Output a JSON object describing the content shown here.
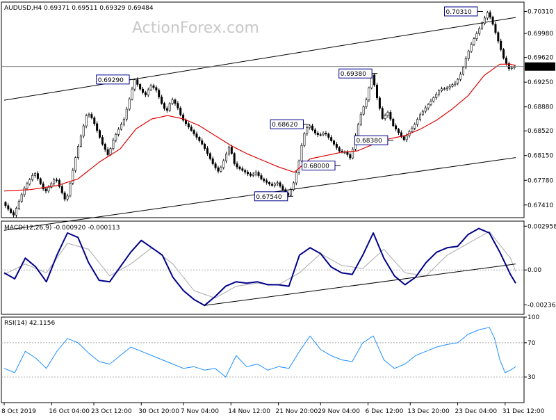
{
  "header": {
    "main": "AUDUSD,H4  0.69371 0.69511 0.69329 0.69484",
    "macd": "MACD(12,26,9) -0.000920 -0.000113",
    "rsi": "RSI(14) 42.1156"
  },
  "watermark": "ActionForex.com",
  "colors": {
    "candle": "#000000",
    "ma": "#e00000",
    "macd": "#00008b",
    "signal": "#a9a9a9",
    "rsi": "#1e90ff",
    "trend": "#000000",
    "label_border": "#00008b"
  },
  "chart_data": [
    {
      "type": "candlestick",
      "symbol": "AUDUSD",
      "timeframe": "H4",
      "ohlc_last": [
        0.69371,
        0.69511,
        0.69329,
        0.69484
      ],
      "current_price": 0.69484,
      "current_price_label": "0.69484",
      "ylim": [
        0.6722,
        0.7045
      ],
      "y_ticks": [
        0.7031,
        0.6998,
        0.6962,
        0.6925,
        0.6888,
        0.6852,
        0.6815,
        0.6778,
        0.6741
      ],
      "y_tick_labels": [
        "0.70310",
        "0.69980",
        "0.69620",
        "0.69250",
        "0.68880",
        "0.68520",
        "0.68150",
        "0.67780",
        "0.67410"
      ],
      "price_path": [
        [
          0,
          0.6745
        ],
        [
          2,
          0.6725
        ],
        [
          4,
          0.6765
        ],
        [
          6,
          0.679
        ],
        [
          8,
          0.676
        ],
        [
          10,
          0.6782
        ],
        [
          12,
          0.6745
        ],
        [
          14,
          0.682
        ],
        [
          15,
          0.685
        ],
        [
          16,
          0.688
        ],
        [
          17,
          0.687
        ],
        [
          18,
          0.685
        ],
        [
          19,
          0.683
        ],
        [
          20,
          0.6815
        ],
        [
          21,
          0.684
        ],
        [
          22,
          0.6855
        ],
        [
          23,
          0.687
        ],
        [
          24,
          0.69
        ],
        [
          25,
          0.6929
        ],
        [
          26,
          0.6915
        ],
        [
          27,
          0.6905
        ],
        [
          28,
          0.692
        ],
        [
          29,
          0.6915
        ],
        [
          30,
          0.6895
        ],
        [
          31,
          0.688
        ],
        [
          32,
          0.69
        ],
        [
          33,
          0.689
        ],
        [
          34,
          0.687
        ],
        [
          35,
          0.686
        ],
        [
          36,
          0.685
        ],
        [
          37,
          0.684
        ],
        [
          38,
          0.683
        ],
        [
          39,
          0.6815
        ],
        [
          40,
          0.68
        ],
        [
          41,
          0.679
        ],
        [
          42,
          0.681
        ],
        [
          43,
          0.683
        ],
        [
          44,
          0.68
        ],
        [
          45,
          0.6795
        ],
        [
          46,
          0.679
        ],
        [
          47,
          0.6785
        ],
        [
          48,
          0.679
        ],
        [
          49,
          0.678
        ],
        [
          50,
          0.6775
        ],
        [
          51,
          0.677
        ],
        [
          52,
          0.6775
        ],
        [
          53,
          0.6765
        ],
        [
          54,
          0.6754
        ],
        [
          55,
          0.677
        ],
        [
          56,
          0.68
        ],
        [
          57,
          0.6845
        ],
        [
          58,
          0.6862
        ],
        [
          59,
          0.685
        ],
        [
          60,
          0.6845
        ],
        [
          61,
          0.685
        ],
        [
          62,
          0.684
        ],
        [
          63,
          0.683
        ],
        [
          64,
          0.682
        ],
        [
          65,
          0.682
        ],
        [
          66,
          0.681
        ],
        [
          67,
          0.685
        ],
        [
          68,
          0.688
        ],
        [
          69,
          0.69
        ],
        [
          70,
          0.6938
        ],
        [
          71,
          0.69
        ],
        [
          72,
          0.687
        ],
        [
          73,
          0.688
        ],
        [
          74,
          0.686
        ],
        [
          75,
          0.685
        ],
        [
          76,
          0.6838
        ],
        [
          77,
          0.685
        ],
        [
          78,
          0.686
        ],
        [
          79,
          0.6875
        ],
        [
          80,
          0.6885
        ],
        [
          81,
          0.6895
        ],
        [
          82,
          0.6905
        ],
        [
          83,
          0.6915
        ],
        [
          84,
          0.6915
        ],
        [
          85,
          0.692
        ],
        [
          86,
          0.6925
        ],
        [
          87,
          0.694
        ],
        [
          88,
          0.6965
        ],
        [
          89,
          0.6985
        ],
        [
          90,
          0.7
        ],
        [
          91,
          0.7015
        ],
        [
          92,
          0.7031
        ],
        [
          93,
          0.701
        ],
        [
          94,
          0.6985
        ],
        [
          95,
          0.696
        ],
        [
          96,
          0.6945
        ],
        [
          97,
          0.6948
        ]
      ],
      "ma_path": [
        [
          0,
          0.6762
        ],
        [
          5,
          0.6764
        ],
        [
          10,
          0.677
        ],
        [
          14,
          0.678
        ],
        [
          18,
          0.6805
        ],
        [
          22,
          0.6825
        ],
        [
          25,
          0.6855
        ],
        [
          28,
          0.687
        ],
        [
          31,
          0.6875
        ],
        [
          34,
          0.687
        ],
        [
          37,
          0.686
        ],
        [
          40,
          0.6845
        ],
        [
          43,
          0.683
        ],
        [
          46,
          0.6818
        ],
        [
          49,
          0.6808
        ],
        [
          52,
          0.6798
        ],
        [
          55,
          0.679
        ],
        [
          58,
          0.681
        ],
        [
          61,
          0.6815
        ],
        [
          64,
          0.682
        ],
        [
          67,
          0.6822
        ],
        [
          70,
          0.6832
        ],
        [
          73,
          0.684
        ],
        [
          76,
          0.6845
        ],
        [
          79,
          0.6855
        ],
        [
          82,
          0.6868
        ],
        [
          85,
          0.6885
        ],
        [
          88,
          0.6905
        ],
        [
          91,
          0.6935
        ],
        [
          94,
          0.6952
        ],
        [
          96,
          0.6952
        ],
        [
          97,
          0.695
        ]
      ],
      "channel_upper": [
        [
          0,
          0.6898
        ],
        [
          97,
          0.7022
        ]
      ],
      "channel_lower": [
        [
          0,
          0.6703
        ],
        [
          97,
          0.6812
        ]
      ],
      "annotations": [
        {
          "x": 24,
          "y": 0.6929,
          "label": "0.69290"
        },
        {
          "x": 54,
          "y": 0.6754,
          "label": "0.67540"
        },
        {
          "x": 57,
          "y": 0.6862,
          "label": "0.68620"
        },
        {
          "x": 63,
          "y": 0.68,
          "label": "0.68000"
        },
        {
          "x": 70,
          "y": 0.6938,
          "label": "0.69380"
        },
        {
          "x": 73,
          "y": 0.6838,
          "label": "0.68380"
        },
        {
          "x": 90,
          "y": 0.7031,
          "label": "0.70310"
        }
      ],
      "x_labels": [
        {
          "x": 0,
          "label": "8 Oct 2019"
        },
        {
          "x": 9,
          "label": "16 Oct 04:00"
        },
        {
          "x": 17,
          "label": "23 Oct 12:00"
        },
        {
          "x": 26,
          "label": "30 Oct 20:00"
        },
        {
          "x": 34,
          "label": "7 Nov 04:00"
        },
        {
          "x": 43,
          "label": "14 Nov 12:00"
        },
        {
          "x": 52,
          "label": "21 Nov 20:00"
        },
        {
          "x": 60,
          "label": "29 Nov 04:00"
        },
        {
          "x": 69,
          "label": "6 Dec 12:00"
        },
        {
          "x": 77,
          "label": "13 Dec 20:00"
        },
        {
          "x": 86,
          "label": "23 Dec 04:00"
        },
        {
          "x": 95,
          "label": "31 Dec 12:00"
        }
      ]
    },
    {
      "type": "line",
      "name": "MACD(12,26,9)",
      "ylim": [
        -0.003,
        0.0033
      ],
      "y_ticks": [
        0.002958,
        0.0,
        -0.002364
      ],
      "y_tick_labels": [
        "0.002958",
        "0.00",
        "-0.002364"
      ],
      "zero_level": 0.0,
      "macd_path": [
        [
          0,
          -0.0002
        ],
        [
          2,
          -0.0006
        ],
        [
          4,
          0.0008
        ],
        [
          6,
          0.0002
        ],
        [
          8,
          -0.0008
        ],
        [
          10,
          0.001
        ],
        [
          12,
          0.0025
        ],
        [
          14,
          0.0022
        ],
        [
          16,
          0.0005
        ],
        [
          18,
          -0.0007
        ],
        [
          20,
          -0.0008
        ],
        [
          22,
          0.0002
        ],
        [
          24,
          0.0012
        ],
        [
          26,
          0.002
        ],
        [
          28,
          0.0015
        ],
        [
          30,
          0.001
        ],
        [
          32,
          -0.0005
        ],
        [
          34,
          -0.0014
        ],
        [
          36,
          -0.002
        ],
        [
          38,
          -0.0024
        ],
        [
          40,
          -0.0018
        ],
        [
          42,
          -0.0011
        ],
        [
          44,
          -0.0008
        ],
        [
          46,
          -0.0009
        ],
        [
          48,
          -0.0008
        ],
        [
          50,
          -0.001
        ],
        [
          52,
          -0.001
        ],
        [
          54,
          -0.0011
        ],
        [
          56,
          0.001
        ],
        [
          58,
          0.0015
        ],
        [
          60,
          0.0011
        ],
        [
          62,
          0.0002
        ],
        [
          64,
          -0.0002
        ],
        [
          66,
          -0.0003
        ],
        [
          68,
          0.001
        ],
        [
          70,
          0.0025
        ],
        [
          72,
          0.0008
        ],
        [
          74,
          -0.0004
        ],
        [
          76,
          -0.001
        ],
        [
          78,
          -0.0005
        ],
        [
          80,
          0.0005
        ],
        [
          82,
          0.0012
        ],
        [
          84,
          0.0015
        ],
        [
          86,
          0.0016
        ],
        [
          88,
          0.0024
        ],
        [
          90,
          0.0028
        ],
        [
          92,
          0.0025
        ],
        [
          94,
          0.0012
        ],
        [
          96,
          -0.0003
        ],
        [
          97,
          -0.0009
        ]
      ],
      "signal_path": [
        [
          0,
          -0.0003
        ],
        [
          4,
          0.0004
        ],
        [
          8,
          -0.0002
        ],
        [
          12,
          0.0018
        ],
        [
          16,
          0.0014
        ],
        [
          20,
          -0.0004
        ],
        [
          24,
          0.0004
        ],
        [
          28,
          0.0015
        ],
        [
          32,
          0.0004
        ],
        [
          36,
          -0.0014
        ],
        [
          40,
          -0.0019
        ],
        [
          44,
          -0.0011
        ],
        [
          48,
          -0.0009
        ],
        [
          52,
          -0.001
        ],
        [
          56,
          -0.0002
        ],
        [
          60,
          0.0011
        ],
        [
          64,
          0.0003
        ],
        [
          68,
          0.0001
        ],
        [
          72,
          0.0014
        ],
        [
          76,
          -0.0002
        ],
        [
          80,
          -0.0004
        ],
        [
          84,
          0.001
        ],
        [
          88,
          0.0018
        ],
        [
          92,
          0.0026
        ],
        [
          96,
          0.0008
        ],
        [
          97,
          -0.0001
        ]
      ],
      "trendline": [
        [
          38,
          -0.0024
        ],
        [
          97,
          0.0004
        ]
      ]
    },
    {
      "type": "line",
      "name": "RSI(14)",
      "ylim": [
        0,
        100
      ],
      "y_ticks": [
        100,
        70,
        30
      ],
      "y_tick_labels": [
        "100",
        "70",
        "30"
      ],
      "levels": [
        70,
        30
      ],
      "rsi_path": [
        [
          0,
          40
        ],
        [
          2,
          35
        ],
        [
          4,
          60
        ],
        [
          6,
          52
        ],
        [
          8,
          40
        ],
        [
          10,
          60
        ],
        [
          12,
          75
        ],
        [
          14,
          70
        ],
        [
          16,
          58
        ],
        [
          18,
          48
        ],
        [
          20,
          45
        ],
        [
          22,
          55
        ],
        [
          24,
          65
        ],
        [
          26,
          60
        ],
        [
          28,
          55
        ],
        [
          30,
          50
        ],
        [
          32,
          45
        ],
        [
          34,
          40
        ],
        [
          36,
          42
        ],
        [
          38,
          38
        ],
        [
          40,
          40
        ],
        [
          42,
          30
        ],
        [
          44,
          55
        ],
        [
          46,
          42
        ],
        [
          48,
          45
        ],
        [
          50,
          38
        ],
        [
          52,
          42
        ],
        [
          54,
          40
        ],
        [
          56,
          60
        ],
        [
          58,
          78
        ],
        [
          60,
          62
        ],
        [
          62,
          55
        ],
        [
          64,
          50
        ],
        [
          66,
          48
        ],
        [
          68,
          70
        ],
        [
          70,
          78
        ],
        [
          72,
          50
        ],
        [
          74,
          40
        ],
        [
          76,
          45
        ],
        [
          78,
          55
        ],
        [
          80,
          60
        ],
        [
          82,
          65
        ],
        [
          84,
          68
        ],
        [
          86,
          70
        ],
        [
          88,
          80
        ],
        [
          90,
          85
        ],
        [
          92,
          88
        ],
        [
          93,
          75
        ],
        [
          94,
          50
        ],
        [
          95,
          35
        ],
        [
          96,
          38
        ],
        [
          97,
          42
        ]
      ]
    }
  ]
}
